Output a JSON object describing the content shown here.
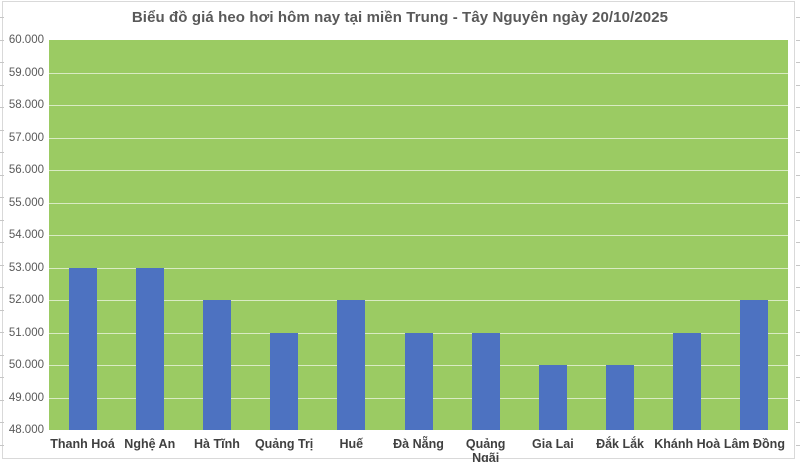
{
  "title": "Biểu đồ giá heo hơi hôm nay tại miền Trung - Tây Nguyên ngày 20/10/2025",
  "chart_data": {
    "type": "bar",
    "title": "Biểu đồ giá heo hơi hôm nay tại miền Trung - Tây Nguyên ngày 20/10/2025",
    "categories": [
      "Thanh Hoá",
      "Nghệ An",
      "Hà Tĩnh",
      "Quảng Trị",
      "Huế",
      "Đà Nẵng",
      "Quảng Ngãi",
      "Gia Lai",
      "Đắk Lắk",
      "Khánh Hoà",
      "Lâm Đồng"
    ],
    "values": [
      53000,
      53000,
      52000,
      51000,
      52000,
      51000,
      51000,
      50000,
      50000,
      51000,
      52000
    ],
    "xlabel": "",
    "ylabel": "",
    "ylim": [
      48000,
      60000
    ],
    "ytick_step": 1000,
    "ytick_labels_top_to_bottom": [
      "60.000",
      "59.000",
      "58.000",
      "57.000",
      "56.000",
      "55.000",
      "54.000",
      "53.000",
      "52.000",
      "51.000",
      "50.000",
      "49.000",
      "48.000"
    ],
    "grid": true,
    "legend": "none",
    "colors": {
      "bar": "#4d72c1",
      "plot_background": "#9bcb63",
      "gridline": "rgba(255,255,255,0.62)",
      "axis_label": "#595959",
      "category_label": "#404040",
      "title": "#595959",
      "frame_border": "#d9d9d9",
      "edge_tick": "#c6c6c6"
    }
  }
}
